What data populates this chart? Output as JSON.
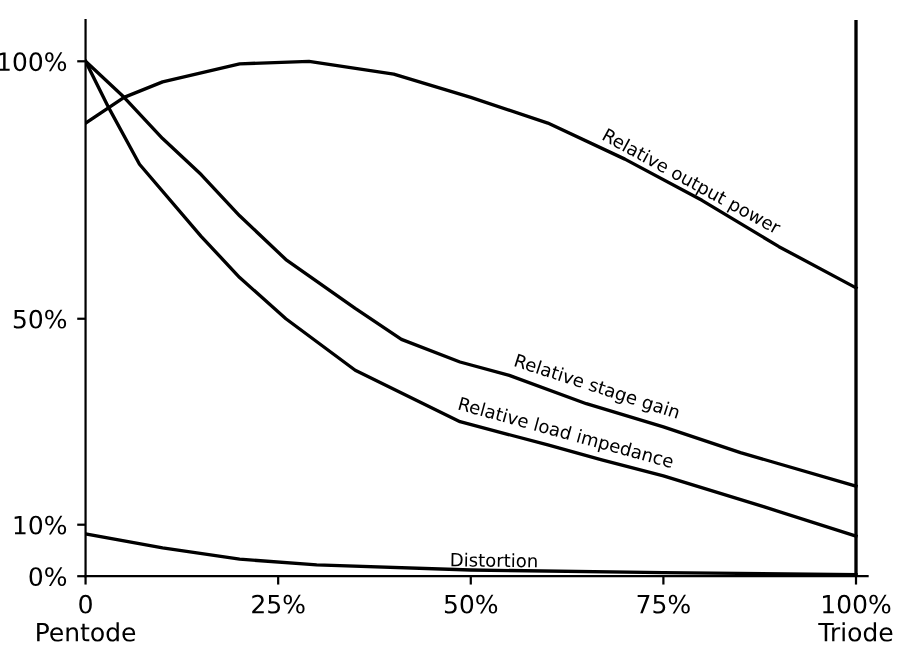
{
  "chart_data": {
    "type": "line",
    "xlim": [
      0,
      101.5
    ],
    "ylim": [
      0,
      108
    ],
    "xticks": [
      {
        "value": 0,
        "label": "0\nPentode"
      },
      {
        "value": 25,
        "label": "25%"
      },
      {
        "value": 50,
        "label": "50%"
      },
      {
        "value": 75,
        "label": "75%"
      },
      {
        "value": 100,
        "label": "100%\nTriode"
      }
    ],
    "yticks": [
      {
        "value": 0,
        "label": "0%"
      },
      {
        "value": 10,
        "label": "10%"
      },
      {
        "value": 50,
        "label": "50%"
      },
      {
        "value": 100,
        "label": "100%"
      }
    ],
    "grid": false,
    "legend": false,
    "marker": "none",
    "line_style": "solid",
    "ref_lines": [
      {
        "axis": "x",
        "value": 100,
        "color": "#000000"
      }
    ],
    "series": [
      {
        "color": "#000000",
        "x": [
          0,
          5,
          10,
          20,
          29,
          40,
          50,
          60,
          70,
          80,
          90,
          100
        ],
        "values": [
          88,
          93,
          96,
          99.5,
          100,
          97.5,
          93,
          88,
          81,
          73,
          64,
          56
        ]
      },
      {
        "color": "#000000",
        "x": [
          0,
          5,
          10,
          15,
          20,
          26,
          35,
          41,
          48.6,
          55,
          65,
          75,
          85,
          100
        ],
        "values": [
          100,
          93,
          85,
          78,
          70,
          61.5,
          52,
          46,
          41.6,
          39,
          33.5,
          29,
          24,
          17.5
        ]
      },
      {
        "color": "#000000",
        "x": [
          0,
          3,
          7,
          15,
          20,
          26,
          35,
          48.6,
          60,
          67,
          75,
          88,
          100
        ],
        "values": [
          100,
          91,
          80,
          66,
          58,
          50,
          40,
          30,
          25.5,
          22.6,
          19.5,
          13.5,
          7.8
        ]
      },
      {
        "color": "#000000",
        "x": [
          0,
          10,
          20,
          30,
          50,
          75,
          100
        ],
        "values": [
          8.2,
          5.5,
          3.3,
          2.2,
          1.2,
          0.7,
          0.3
        ]
      }
    ],
    "annotations": [
      {
        "text": "Relative output power",
        "x": 78,
        "y": 75
      },
      {
        "text": "Relative stage gain",
        "x": 66,
        "y": 35
      },
      {
        "text": "Relative load impedance",
        "x": 62,
        "y": 26
      },
      {
        "text": "Distortion",
        "x": 53,
        "y": 1.1
      }
    ]
  }
}
